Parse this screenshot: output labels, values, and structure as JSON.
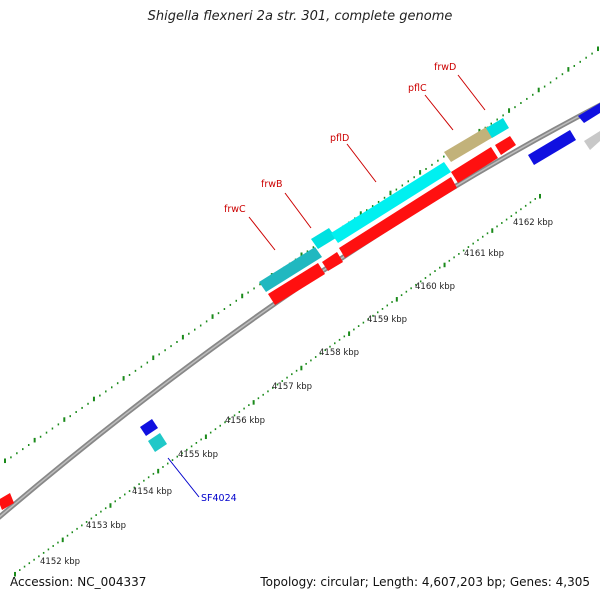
{
  "title": "Shigella flexneri 2a str. 301, complete genome",
  "footer": {
    "accession": "Accession: NC_004337",
    "summary": "Topology: circular; Length: 4,607,203 bp; Genes: 4,305"
  },
  "colors": {
    "backbone": "#8a8a8a",
    "tick": "#1a8a1a",
    "forward_cds": "#00e0e0",
    "forward_cds_dark": "#20b8c0",
    "reverse_cds": "#ff1010",
    "reverse_cds_dark": "#cc0000",
    "blue_gene": "#1010e0",
    "tan_gene": "#c2b27a",
    "label_red": "#cc0000",
    "label_blue": "#0000cc"
  },
  "scale_labels": [
    {
      "kbp": 4152,
      "text": "4152 kbp"
    },
    {
      "kbp": 4153,
      "text": "4153 kbp"
    },
    {
      "kbp": 4154,
      "text": "4154 kbp"
    },
    {
      "kbp": 4155,
      "text": "4155 kbp"
    },
    {
      "kbp": 4156,
      "text": "4156 kbp"
    },
    {
      "kbp": 4157,
      "text": "4157 kbp"
    },
    {
      "kbp": 4158,
      "text": "4158 kbp"
    },
    {
      "kbp": 4159,
      "text": "4159 kbp"
    },
    {
      "kbp": 4160,
      "text": "4160 kbp"
    },
    {
      "kbp": 4161,
      "text": "4161 kbp"
    },
    {
      "kbp": 4162,
      "text": "4162 kbp"
    }
  ],
  "gene_labels": [
    {
      "name": "frwC",
      "strand": "forward"
    },
    {
      "name": "frwB",
      "strand": "forward"
    },
    {
      "name": "pflD",
      "strand": "forward"
    },
    {
      "name": "pflC",
      "strand": "forward"
    },
    {
      "name": "frwD",
      "strand": "forward"
    },
    {
      "name": "SF4024",
      "strand": "forward"
    }
  ]
}
